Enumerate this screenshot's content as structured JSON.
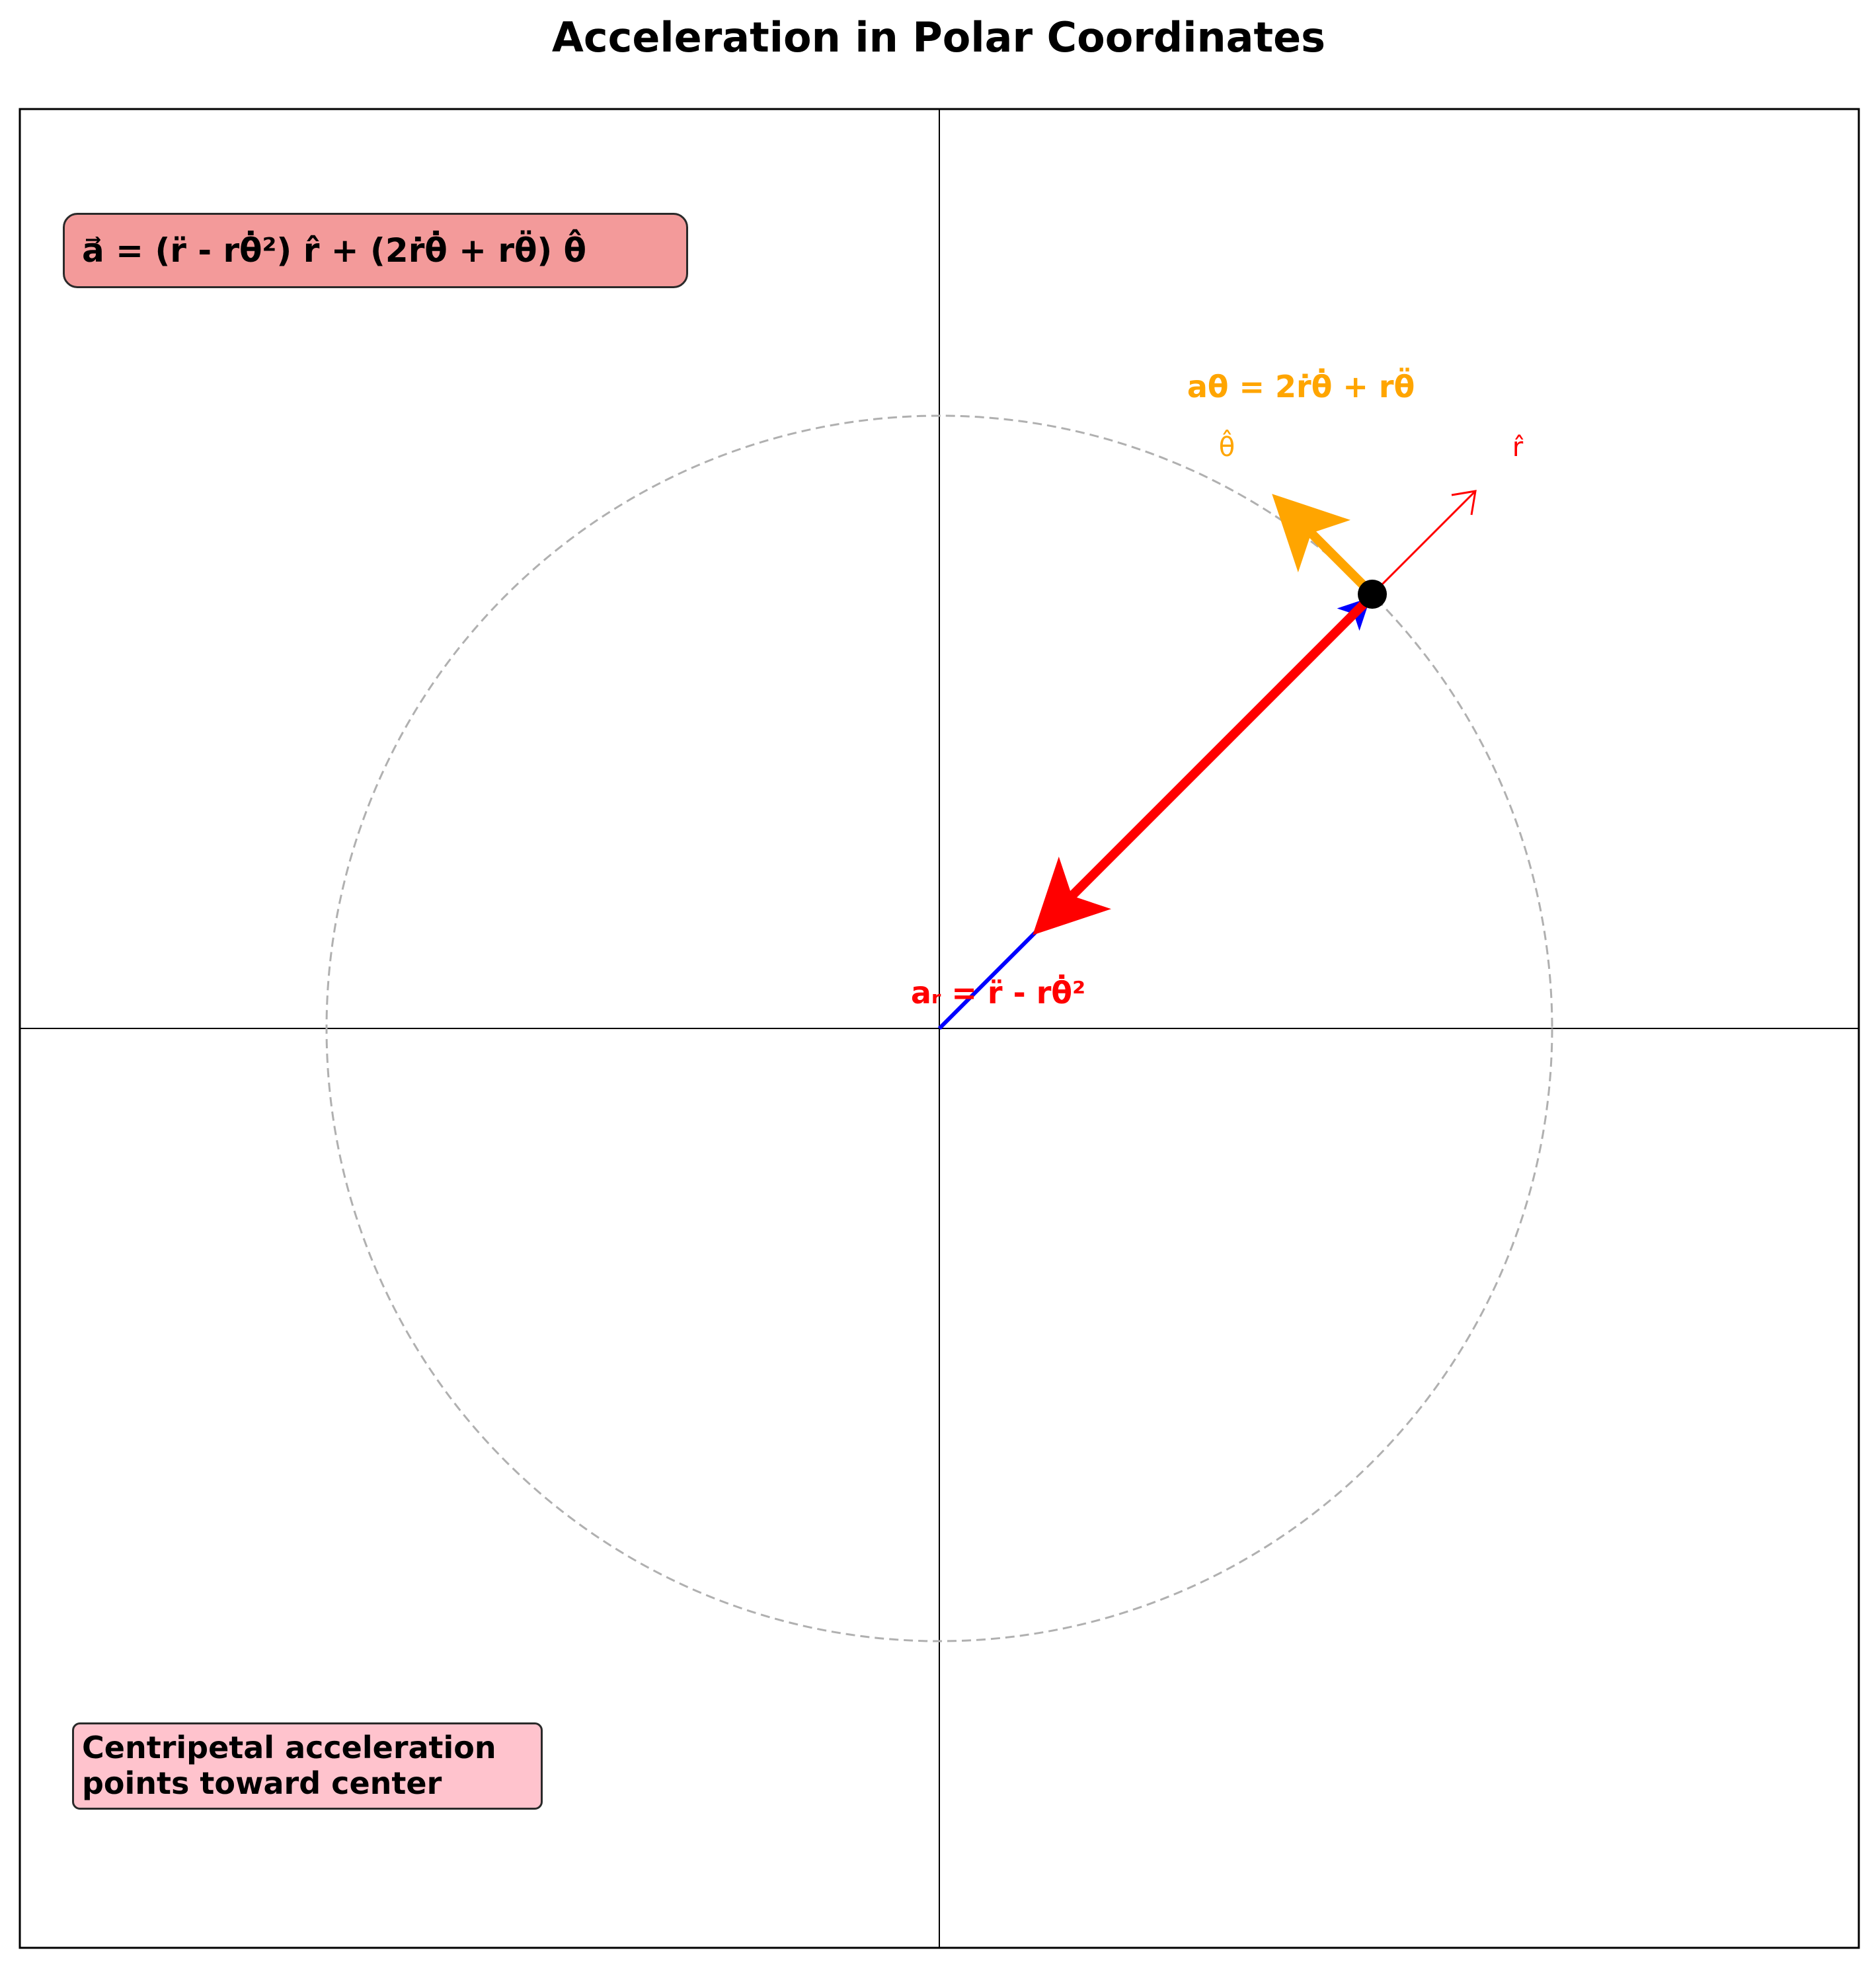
{
  "title": "Acceleration in Polar Coordinates",
  "formula": "a⃗ = (r̈ - rθ̇²) r̂ + (2ṙθ̇ + rθ̈) θ̂",
  "note": {
    "line1": "Centripetal acceleration",
    "line2": "points toward center"
  },
  "labels": {
    "radial_component": "aᵣ = r̈ - rθ̇²",
    "tangential_component": "aθ = 2ṙθ̇ + rθ̈",
    "r_hat": "r̂",
    "theta_hat": "θ̂"
  },
  "colors": {
    "radial": "#ff0000",
    "tangential": "#ffa500",
    "velocity": "#0000ff",
    "point": "#000000",
    "circle": "#b0b0b0",
    "formula_box": "#f39a9a",
    "note_box": "#ffc3cd"
  },
  "diagram": {
    "circle_radius": 1.0,
    "point_angle_deg": 45,
    "axes_limits": [
      -1.5,
      1.5
    ],
    "radial_acceleration_tip": [
      0.15,
      0.15
    ],
    "tangential_acceleration_length": 0.22,
    "unit_vector_length": 0.3
  }
}
